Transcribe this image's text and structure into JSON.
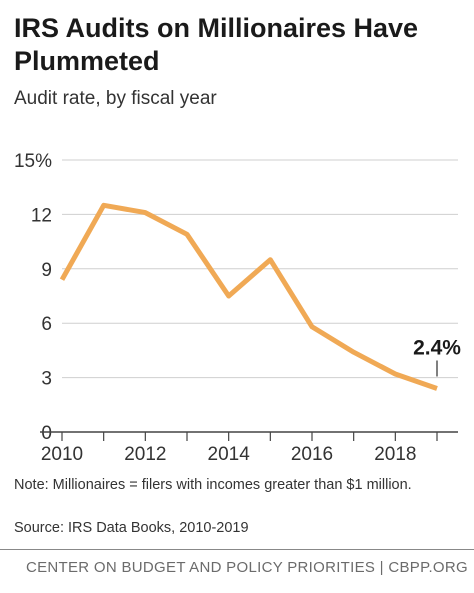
{
  "title": "IRS Audits on Millionaires Have Plummeted",
  "subtitle": "Audit rate, by fiscal year",
  "note": "Note: Millionaires = filers with incomes greater than $1 million.",
  "source": "Source: IRS Data Books, 2010-2019",
  "footer": "CENTER ON BUDGET AND POLICY PRIORITIES | CBPP.ORG",
  "chart_data": {
    "type": "line",
    "title": "IRS Audits on Millionaires Have Plummeted",
    "subtitle": "Audit rate, by fiscal year",
    "x": [
      2010,
      2011,
      2012,
      2013,
      2014,
      2015,
      2016,
      2017,
      2018,
      2019
    ],
    "series": [
      {
        "values": [
          8.4,
          12.5,
          12.1,
          10.9,
          7.5,
          9.5,
          5.8,
          4.4,
          3.2,
          2.4
        ]
      }
    ],
    "x_tick_labels": [
      "2010",
      "2012",
      "2014",
      "2016",
      "2018"
    ],
    "x_tick_values": [
      2010,
      2012,
      2014,
      2016,
      2018
    ],
    "y_tick_labels": [
      "0",
      "3",
      "6",
      "9",
      "12",
      "15%"
    ],
    "y_tick_values": [
      0,
      3,
      6,
      9,
      12,
      15
    ],
    "xlim": [
      2010,
      2019
    ],
    "ylim": [
      0,
      15
    ],
    "grid": "horizontal",
    "annotation": {
      "x": 2019,
      "y": 2.4,
      "text": "2.4%"
    },
    "line_color": "#F0A955",
    "grid_color": "#CFCFCF"
  }
}
